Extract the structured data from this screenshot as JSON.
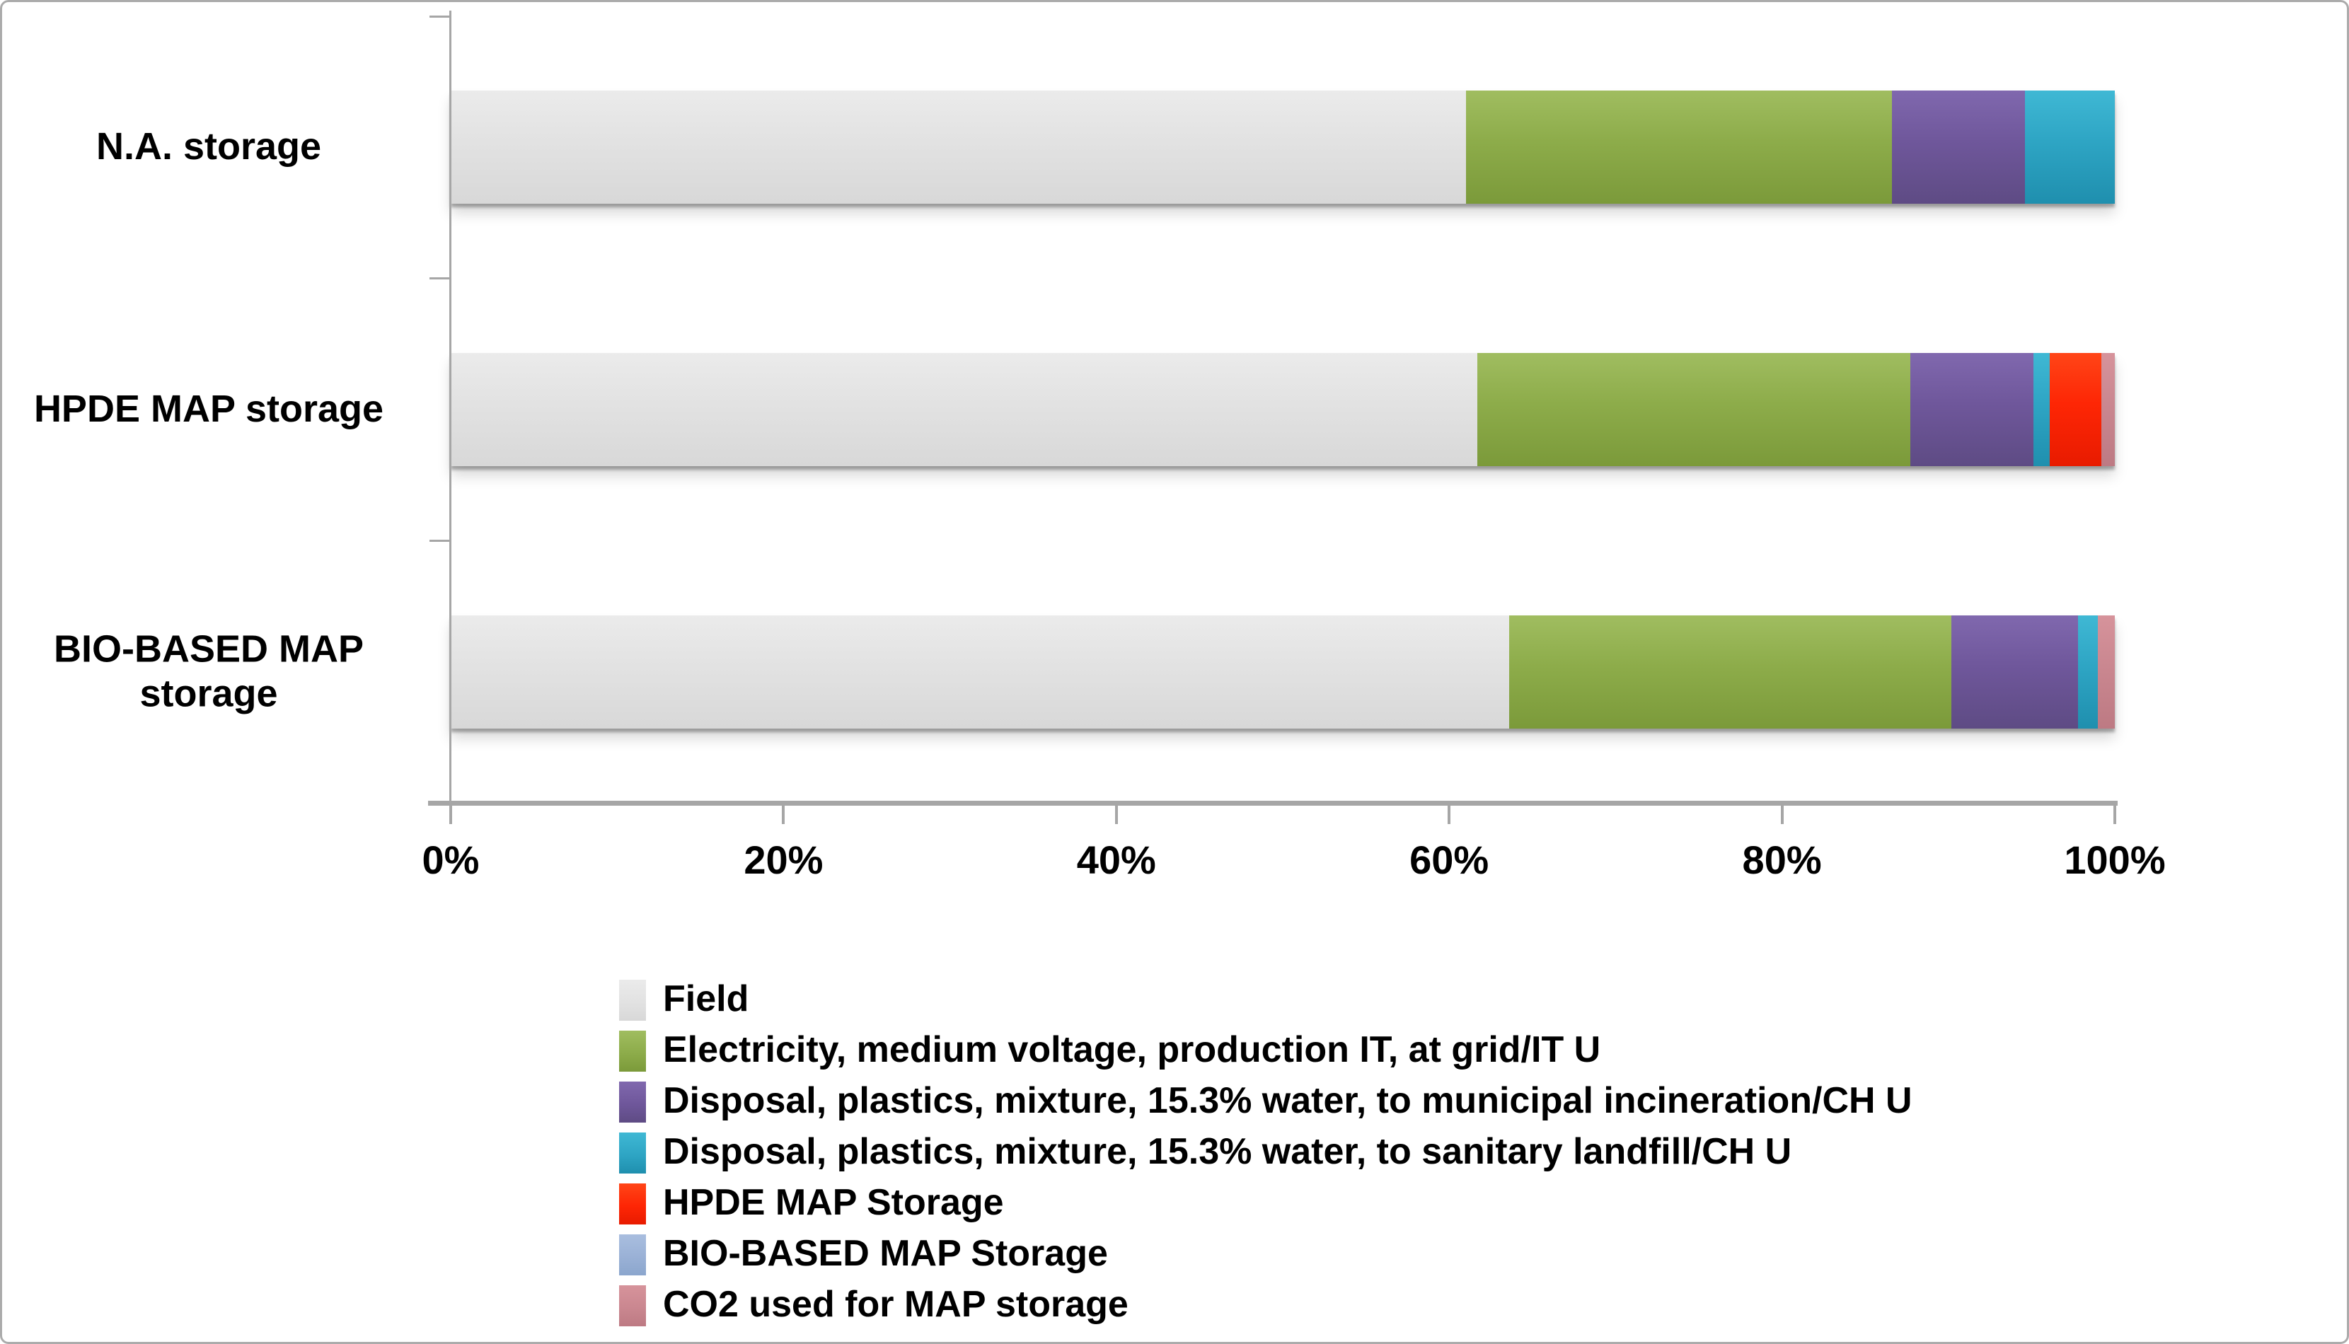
{
  "chart_data": {
    "type": "bar",
    "orientation": "horizontal",
    "stacked": true,
    "unit": "percent",
    "title": "",
    "xlabel": "",
    "ylabel": "",
    "xlim": [
      0,
      100
    ],
    "x_ticks": [
      "0%",
      "20%",
      "40%",
      "60%",
      "80%",
      "100%"
    ],
    "x_tick_values": [
      0,
      20,
      40,
      60,
      80,
      100
    ],
    "grid": false,
    "legend_position": "bottom",
    "categories": [
      "N.A. storage",
      "HPDE MAP storage",
      "BIO-BASED MAP storage"
    ],
    "series": [
      {
        "name": "Field",
        "color": "#e2e2e2",
        "color_light": "#ebebeb",
        "color_dark": "#d8d8d8",
        "values": [
          61.0,
          61.7,
          63.6
        ]
      },
      {
        "name": "Electricity, medium voltage, production IT, at grid/IT U",
        "color": "#8dac4a",
        "color_light": "#a0bd60",
        "color_dark": "#7b9a3a",
        "values": [
          25.6,
          26.0,
          26.6
        ]
      },
      {
        "name": "Disposal, plastics, mixture, 15.3% water, to municipal incineration/CH U",
        "color": "#6f579b",
        "color_light": "#8068ae",
        "color_dark": "#5e4b84",
        "values": [
          8.0,
          7.4,
          7.6
        ]
      },
      {
        "name": "Disposal, plastics, mixture, 15.3% water, to sanitary landfill/CH U",
        "color": "#2ea5c4",
        "color_light": "#3fb8d4",
        "color_dark": "#1f8fae",
        "values": [
          5.4,
          1.0,
          1.2
        ]
      },
      {
        "name": "HPDE MAP Storage",
        "color": "#fe2605",
        "color_light": "#ff4517",
        "color_dark": "#e81b00",
        "values": [
          0,
          3.1,
          0
        ]
      },
      {
        "name": "BIO-BASED MAP Storage",
        "color": "#9ab1d6",
        "color_light": "#a9bedf",
        "color_dark": "#8ba6cd",
        "values": [
          0,
          0,
          0
        ]
      },
      {
        "name": "CO2 used for MAP storage",
        "color": "#ca8790",
        "color_light": "#d6939b",
        "color_dark": "#bd7a83",
        "values": [
          0,
          0.8,
          1.0
        ]
      }
    ]
  }
}
